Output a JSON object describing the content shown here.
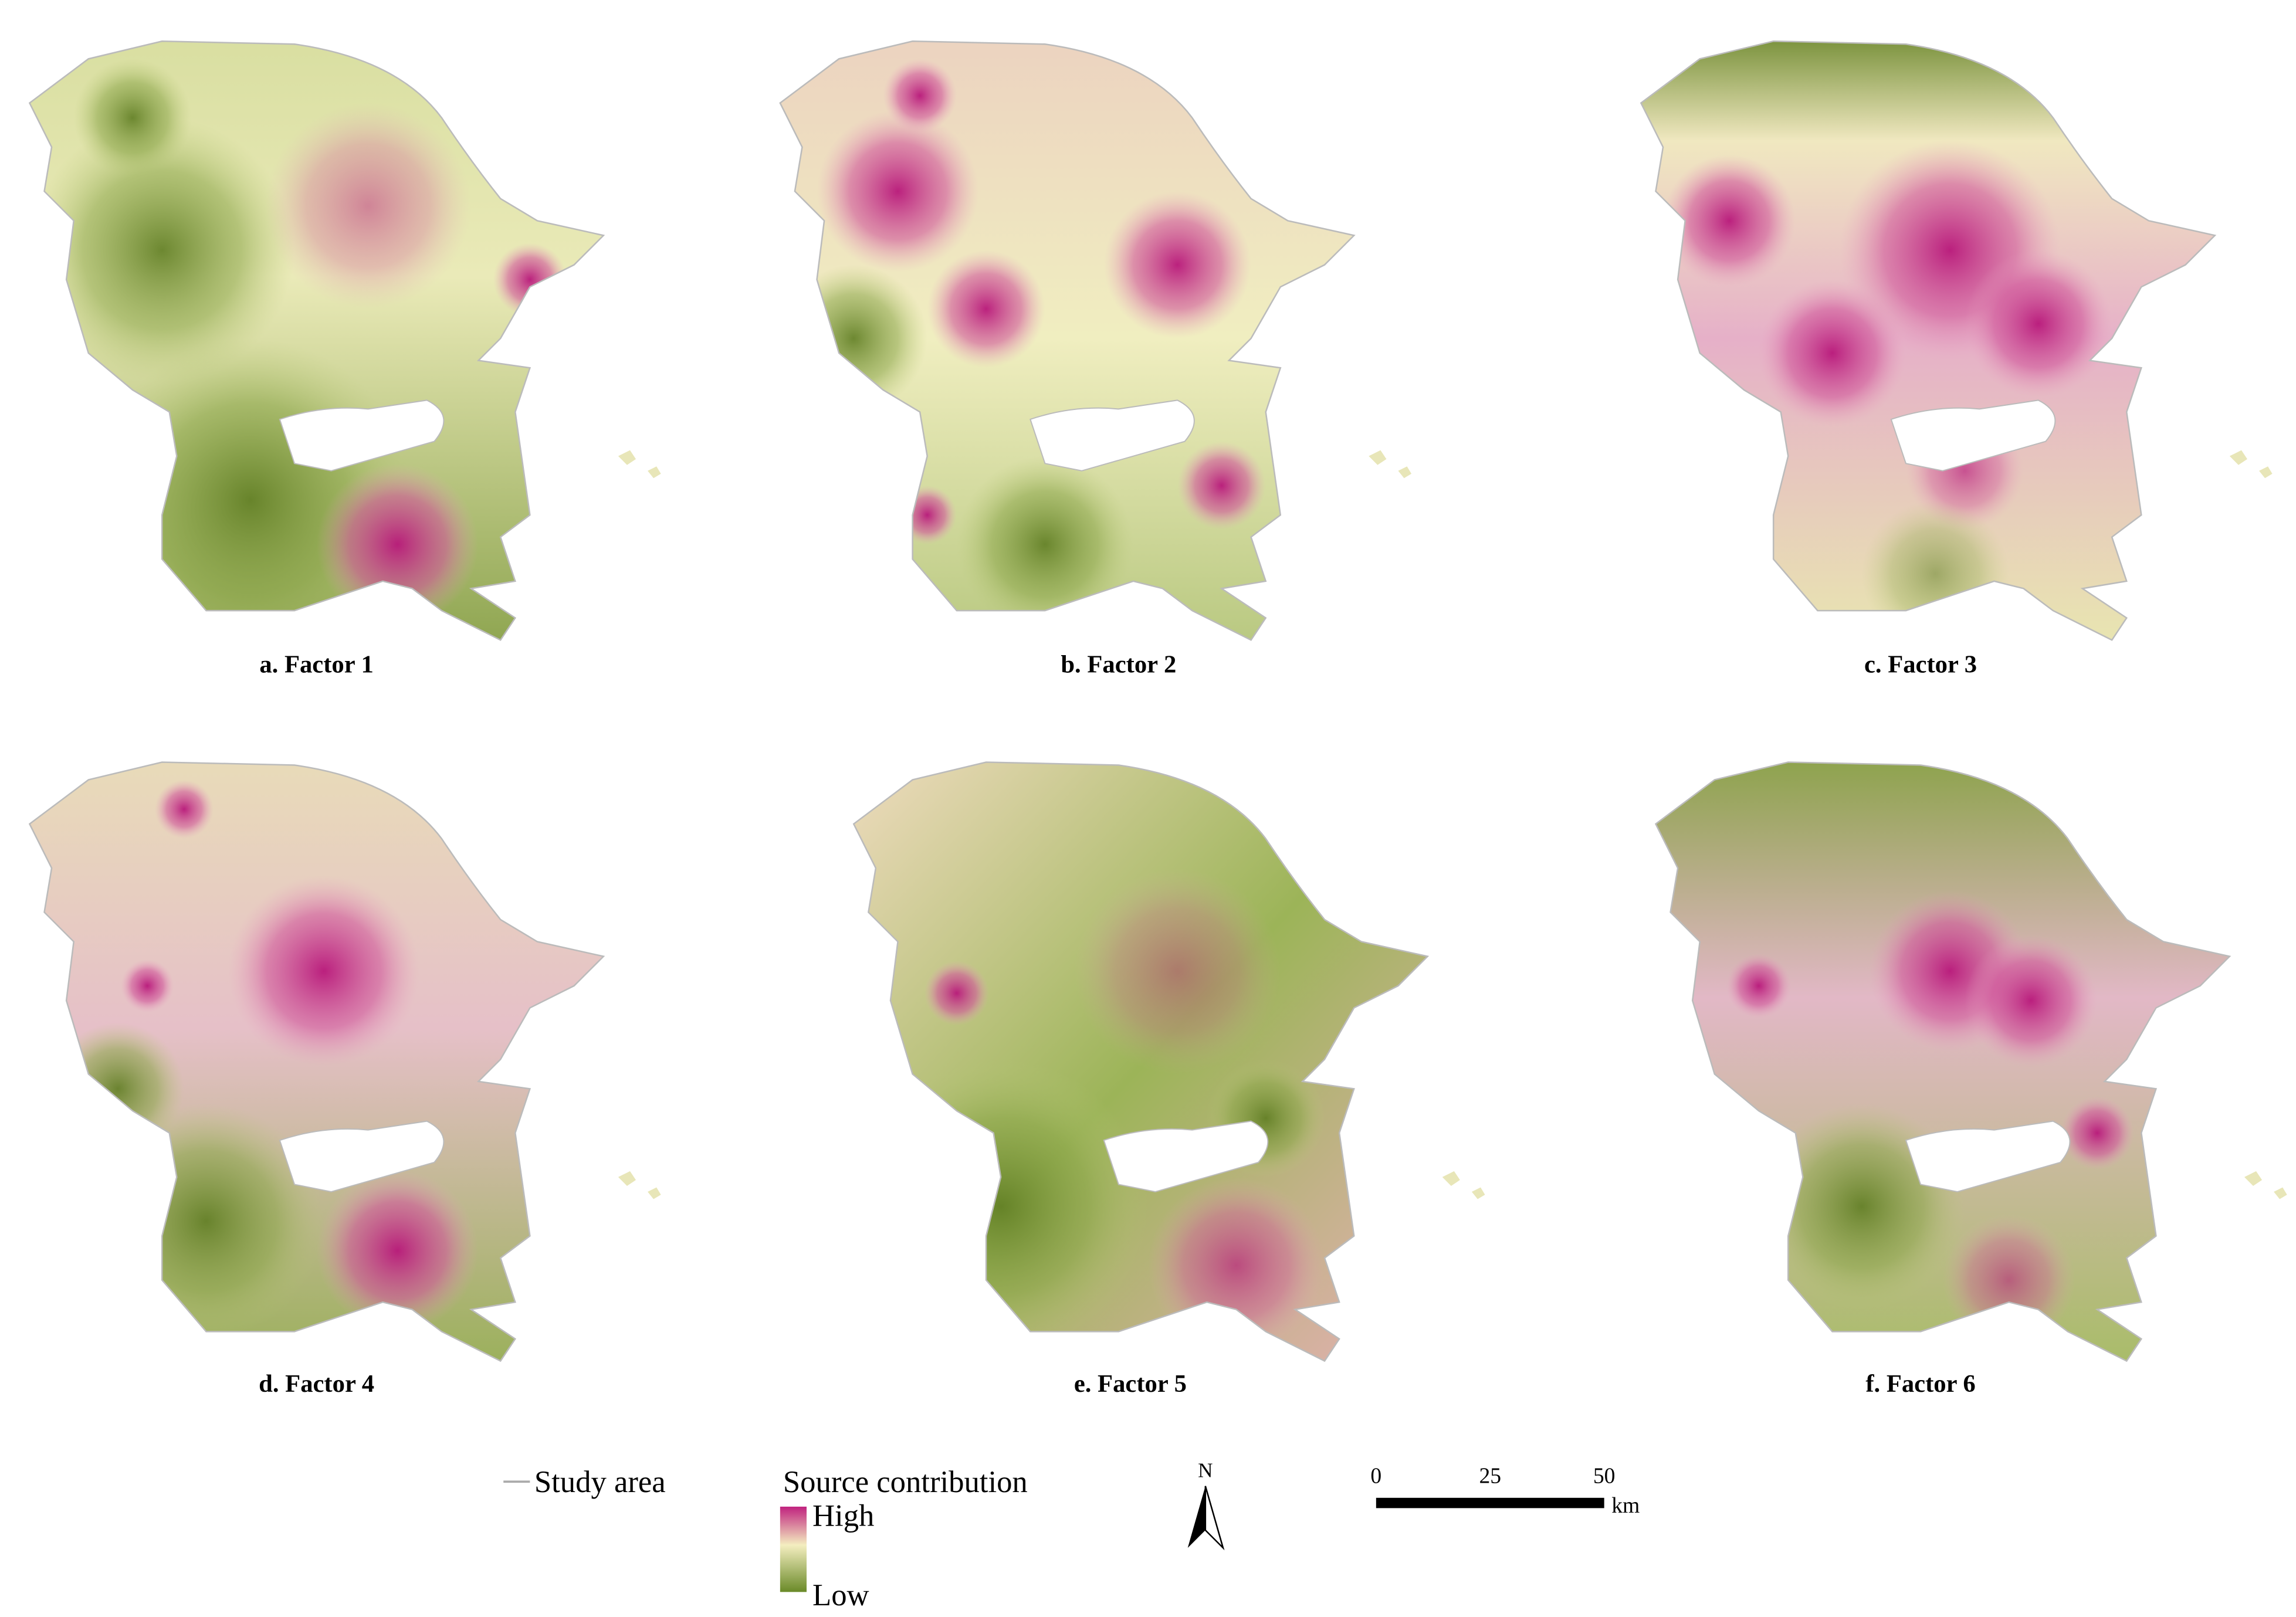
{
  "panels": [
    {
      "label": "a. Factor 1"
    },
    {
      "label": "b. Factor 2"
    },
    {
      "label": "c. Factor 3"
    },
    {
      "label": "d. Factor 4"
    },
    {
      "label": "e. Factor 5"
    },
    {
      "label": "f. Factor 6"
    }
  ],
  "legend": {
    "boundary": "Study area",
    "title": "Source contribution",
    "high": "High",
    "low": "Low"
  },
  "north": "N",
  "scale_bar": {
    "ticks": [
      0,
      25,
      50
    ],
    "unit": "km"
  }
}
